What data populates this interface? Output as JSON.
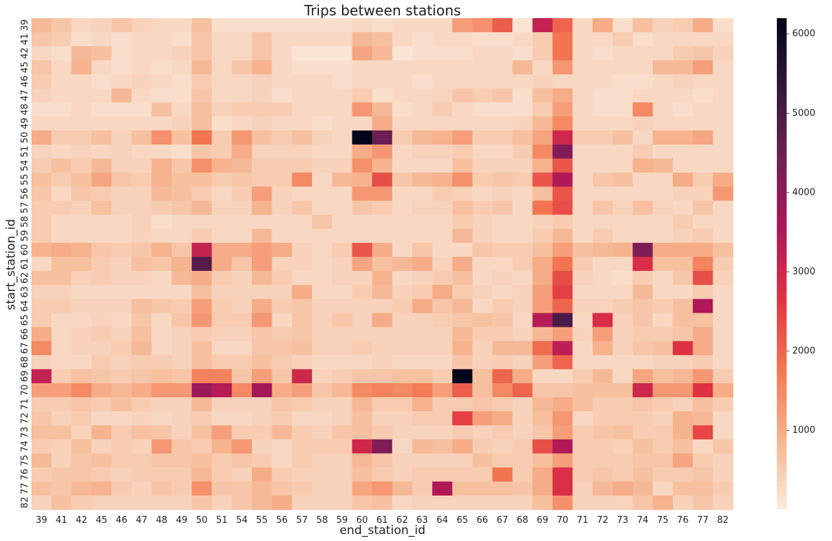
{
  "chart_data": {
    "type": "heatmap",
    "title": "Trips between stations",
    "xlabel": "end_station_id",
    "ylabel": "start_station_id",
    "x_categories": [
      "39",
      "41",
      "42",
      "45",
      "46",
      "47",
      "48",
      "49",
      "50",
      "51",
      "54",
      "55",
      "56",
      "57",
      "58",
      "59",
      "60",
      "61",
      "62",
      "63",
      "64",
      "65",
      "66",
      "67",
      "68",
      "69",
      "70",
      "71",
      "72",
      "73",
      "74",
      "75",
      "76",
      "77",
      "82"
    ],
    "y_categories": [
      "39",
      "41",
      "42",
      "45",
      "46",
      "47",
      "48",
      "49",
      "50",
      "51",
      "54",
      "55",
      "56",
      "57",
      "58",
      "59",
      "60",
      "61",
      "62",
      "63",
      "64",
      "65",
      "66",
      "67",
      "68",
      "69",
      "70",
      "71",
      "72",
      "73",
      "74",
      "75",
      "76",
      "77",
      "82"
    ],
    "colorbar": {
      "min": 0,
      "max": 6200,
      "ticks": [
        1000,
        2000,
        3000,
        4000,
        5000,
        6000
      ],
      "colors": [
        "#faebdd",
        "#f6b48f",
        "#f37651",
        "#e13342",
        "#ad1759",
        "#701f57",
        "#35193e",
        "#03051a"
      ]
    },
    "values": [
      [
        800,
        600,
        300,
        400,
        600,
        400,
        300,
        300,
        700,
        200,
        200,
        200,
        200,
        200,
        200,
        200,
        300,
        200,
        300,
        300,
        300,
        1200,
        1400,
        2100,
        100,
        3200,
        2000,
        300,
        1000,
        200,
        700,
        400,
        500,
        1000,
        200
      ],
      [
        600,
        500,
        200,
        300,
        200,
        300,
        300,
        200,
        600,
        300,
        300,
        600,
        300,
        300,
        300,
        300,
        800,
        700,
        300,
        200,
        300,
        300,
        200,
        200,
        300,
        500,
        1800,
        300,
        300,
        500,
        200,
        300,
        300,
        300,
        300
      ],
      [
        300,
        200,
        800,
        700,
        200,
        300,
        300,
        400,
        600,
        300,
        300,
        600,
        300,
        100,
        100,
        100,
        1100,
        800,
        100,
        200,
        200,
        200,
        300,
        300,
        200,
        500,
        1800,
        300,
        200,
        300,
        300,
        300,
        500,
        600,
        400
      ],
      [
        600,
        300,
        900,
        300,
        200,
        300,
        200,
        300,
        800,
        300,
        600,
        900,
        300,
        200,
        200,
        200,
        300,
        300,
        300,
        300,
        300,
        300,
        300,
        300,
        800,
        300,
        1300,
        300,
        300,
        300,
        300,
        800,
        800,
        1200,
        300
      ],
      [
        500,
        300,
        300,
        200,
        300,
        400,
        300,
        200,
        500,
        300,
        300,
        400,
        300,
        300,
        300,
        200,
        300,
        300,
        300,
        200,
        300,
        300,
        300,
        300,
        300,
        400,
        300,
        300,
        300,
        200,
        200,
        300,
        400,
        300,
        300
      ],
      [
        400,
        300,
        300,
        300,
        800,
        300,
        200,
        200,
        600,
        300,
        300,
        400,
        200,
        300,
        300,
        300,
        500,
        200,
        300,
        300,
        400,
        600,
        500,
        600,
        200,
        700,
        1000,
        300,
        200,
        200,
        300,
        300,
        300,
        200,
        300
      ],
      [
        200,
        200,
        300,
        200,
        200,
        200,
        700,
        300,
        700,
        400,
        500,
        500,
        500,
        300,
        300,
        300,
        1300,
        800,
        200,
        300,
        500,
        300,
        200,
        200,
        200,
        500,
        1200,
        300,
        200,
        200,
        1500,
        300,
        200,
        300,
        300
      ],
      [
        300,
        300,
        300,
        300,
        300,
        300,
        300,
        400,
        700,
        200,
        300,
        400,
        300,
        300,
        200,
        300,
        300,
        1000,
        300,
        300,
        300,
        300,
        300,
        300,
        400,
        800,
        1500,
        300,
        300,
        300,
        400,
        300,
        300,
        300,
        300
      ],
      [
        1000,
        500,
        500,
        700,
        400,
        700,
        1400,
        700,
        1800,
        500,
        1300,
        700,
        500,
        700,
        400,
        300,
        6200,
        4500,
        500,
        800,
        900,
        1200,
        500,
        500,
        700,
        1100,
        3000,
        500,
        500,
        700,
        300,
        900,
        900,
        1100,
        300
      ],
      [
        400,
        300,
        400,
        300,
        400,
        300,
        300,
        200,
        600,
        500,
        1000,
        400,
        400,
        400,
        300,
        300,
        1000,
        1300,
        300,
        400,
        400,
        500,
        300,
        300,
        500,
        1500,
        4200,
        300,
        300,
        300,
        500,
        300,
        300,
        300,
        300
      ],
      [
        500,
        700,
        500,
        800,
        400,
        400,
        900,
        600,
        1400,
        900,
        800,
        500,
        500,
        500,
        400,
        400,
        1400,
        900,
        300,
        300,
        300,
        700,
        400,
        400,
        400,
        900,
        2200,
        300,
        300,
        300,
        900,
        800,
        300,
        300,
        300
      ],
      [
        700,
        500,
        700,
        1100,
        600,
        500,
        900,
        700,
        700,
        500,
        600,
        500,
        500,
        1500,
        300,
        800,
        900,
        2300,
        600,
        800,
        900,
        1400,
        500,
        600,
        500,
        2200,
        3500,
        300,
        600,
        700,
        300,
        300,
        1000,
        500,
        1000
      ],
      [
        600,
        300,
        600,
        500,
        400,
        400,
        800,
        700,
        500,
        300,
        500,
        1200,
        400,
        300,
        300,
        300,
        1300,
        1300,
        300,
        300,
        500,
        400,
        300,
        400,
        300,
        700,
        2200,
        300,
        300,
        300,
        300,
        300,
        400,
        400,
        1300
      ],
      [
        500,
        500,
        400,
        700,
        400,
        400,
        500,
        600,
        800,
        400,
        400,
        900,
        400,
        600,
        300,
        300,
        600,
        500,
        300,
        400,
        400,
        700,
        500,
        600,
        300,
        1800,
        2300,
        300,
        600,
        400,
        700,
        400,
        300,
        600,
        300
      ],
      [
        500,
        300,
        300,
        300,
        300,
        400,
        200,
        300,
        300,
        300,
        300,
        300,
        300,
        300,
        600,
        300,
        300,
        300,
        300,
        300,
        300,
        500,
        400,
        300,
        300,
        400,
        500,
        300,
        300,
        300,
        300,
        300,
        500,
        300,
        300
      ],
      [
        500,
        300,
        300,
        300,
        300,
        400,
        300,
        300,
        500,
        300,
        300,
        800,
        300,
        300,
        300,
        300,
        300,
        300,
        300,
        300,
        300,
        800,
        400,
        300,
        300,
        500,
        800,
        300,
        500,
        300,
        300,
        300,
        400,
        500,
        300
      ],
      [
        900,
        1000,
        900,
        600,
        500,
        600,
        900,
        600,
        3200,
        1000,
        1000,
        1200,
        1000,
        400,
        300,
        500,
        2200,
        1000,
        300,
        600,
        300,
        300,
        600,
        500,
        500,
        700,
        1200,
        700,
        800,
        900,
        4200,
        1000,
        1000,
        1000,
        700
      ],
      [
        300,
        700,
        700,
        500,
        400,
        700,
        600,
        900,
        4800,
        1000,
        600,
        1200,
        400,
        400,
        300,
        400,
        1100,
        700,
        800,
        1000,
        400,
        1000,
        300,
        300,
        500,
        1000,
        1800,
        500,
        300,
        300,
        2800,
        700,
        700,
        1600,
        500
      ],
      [
        700,
        700,
        400,
        500,
        400,
        400,
        300,
        800,
        1000,
        500,
        400,
        800,
        500,
        300,
        300,
        400,
        400,
        900,
        300,
        400,
        500,
        700,
        300,
        400,
        300,
        1000,
        2300,
        400,
        300,
        200,
        500,
        300,
        600,
        2300,
        400
      ],
      [
        400,
        400,
        300,
        300,
        300,
        300,
        300,
        300,
        700,
        400,
        400,
        400,
        400,
        1000,
        300,
        300,
        500,
        800,
        400,
        500,
        1000,
        500,
        400,
        300,
        400,
        1200,
        2500,
        300,
        300,
        300,
        800,
        300,
        300,
        500,
        300
      ],
      [
        500,
        500,
        400,
        400,
        400,
        700,
        600,
        500,
        1200,
        500,
        400,
        1000,
        500,
        600,
        400,
        400,
        400,
        400,
        500,
        1000,
        600,
        800,
        300,
        500,
        400,
        1200,
        2000,
        400,
        400,
        500,
        600,
        500,
        700,
        3500,
        300
      ],
      [
        500,
        300,
        300,
        400,
        300,
        600,
        300,
        600,
        1300,
        500,
        500,
        1300,
        300,
        600,
        400,
        600,
        400,
        1000,
        400,
        400,
        500,
        600,
        700,
        600,
        300,
        3400,
        5000,
        300,
        2800,
        400,
        600,
        300,
        700,
        700,
        300
      ],
      [
        1000,
        300,
        400,
        500,
        400,
        700,
        300,
        400,
        500,
        400,
        400,
        600,
        500,
        600,
        400,
        400,
        400,
        400,
        400,
        400,
        400,
        800,
        500,
        500,
        400,
        800,
        1200,
        400,
        1200,
        400,
        500,
        500,
        600,
        1000,
        300
      ],
      [
        1500,
        300,
        400,
        400,
        500,
        800,
        300,
        400,
        700,
        300,
        300,
        600,
        600,
        700,
        400,
        400,
        500,
        400,
        400,
        400,
        400,
        900,
        400,
        800,
        800,
        1900,
        3300,
        300,
        900,
        400,
        600,
        700,
        2700,
        1000,
        300
      ],
      [
        400,
        300,
        300,
        500,
        400,
        500,
        500,
        400,
        700,
        500,
        500,
        700,
        500,
        400,
        300,
        300,
        300,
        400,
        300,
        300,
        300,
        600,
        400,
        500,
        400,
        1200,
        2000,
        300,
        300,
        300,
        300,
        400,
        400,
        500,
        300
      ],
      [
        3200,
        500,
        700,
        600,
        500,
        600,
        700,
        600,
        1600,
        1600,
        600,
        1200,
        600,
        3000,
        400,
        500,
        600,
        600,
        700,
        700,
        500,
        6200,
        700,
        2000,
        1000,
        300,
        300,
        500,
        800,
        300,
        1100,
        700,
        800,
        1300,
        500
      ],
      [
        1200,
        1200,
        1500,
        1000,
        800,
        1000,
        1300,
        1300,
        3800,
        3400,
        1500,
        3700,
        1000,
        1200,
        600,
        800,
        1500,
        1600,
        1500,
        1700,
        1200,
        2100,
        700,
        1500,
        2000,
        600,
        600,
        700,
        700,
        700,
        3000,
        1300,
        1300,
        2700,
        1000
      ],
      [
        500,
        500,
        600,
        500,
        700,
        500,
        400,
        400,
        800,
        400,
        400,
        400,
        600,
        500,
        400,
        400,
        800,
        500,
        500,
        900,
        500,
        500,
        600,
        500,
        400,
        800,
        1000,
        700,
        500,
        500,
        600,
        500,
        400,
        700,
        500
      ],
      [
        600,
        400,
        500,
        300,
        300,
        400,
        300,
        400,
        500,
        300,
        300,
        400,
        500,
        300,
        300,
        400,
        700,
        400,
        400,
        500,
        500,
        2500,
        1200,
        1000,
        400,
        700,
        1300,
        300,
        500,
        500,
        500,
        400,
        900,
        800,
        300
      ],
      [
        700,
        700,
        400,
        900,
        500,
        700,
        600,
        400,
        700,
        1200,
        500,
        500,
        800,
        500,
        400,
        600,
        700,
        500,
        400,
        400,
        400,
        500,
        400,
        500,
        400,
        600,
        1200,
        500,
        600,
        700,
        500,
        500,
        900,
        2400,
        300
      ],
      [
        500,
        400,
        700,
        400,
        500,
        400,
        1300,
        600,
        500,
        900,
        1300,
        400,
        300,
        500,
        500,
        500,
        3000,
        4200,
        300,
        800,
        700,
        1000,
        500,
        400,
        500,
        2300,
        3500,
        500,
        500,
        400,
        700,
        500,
        700,
        300,
        600
      ],
      [
        800,
        400,
        600,
        700,
        500,
        500,
        600,
        600,
        700,
        500,
        600,
        500,
        300,
        500,
        400,
        400,
        800,
        600,
        400,
        400,
        400,
        400,
        700,
        500,
        500,
        700,
        1200,
        500,
        500,
        500,
        600,
        600,
        1100,
        500,
        400
      ],
      [
        500,
        600,
        600,
        500,
        400,
        500,
        500,
        500,
        800,
        500,
        400,
        1000,
        500,
        400,
        400,
        400,
        700,
        500,
        400,
        500,
        500,
        500,
        500,
        1800,
        500,
        1000,
        2800,
        500,
        600,
        500,
        700,
        500,
        500,
        600,
        400
      ],
      [
        700,
        600,
        800,
        900,
        500,
        400,
        600,
        500,
        1400,
        600,
        600,
        800,
        600,
        500,
        400,
        400,
        1100,
        1300,
        800,
        500,
        3500,
        700,
        700,
        700,
        600,
        1000,
        2800,
        400,
        800,
        1000,
        800,
        300,
        700,
        700,
        500
      ],
      [
        400,
        700,
        500,
        400,
        400,
        400,
        400,
        400,
        600,
        400,
        600,
        800,
        1000,
        400,
        400,
        400,
        600,
        700,
        300,
        400,
        400,
        400,
        400,
        400,
        400,
        700,
        1400,
        400,
        400,
        400,
        600,
        900,
        400,
        600,
        400
      ]
    ]
  }
}
